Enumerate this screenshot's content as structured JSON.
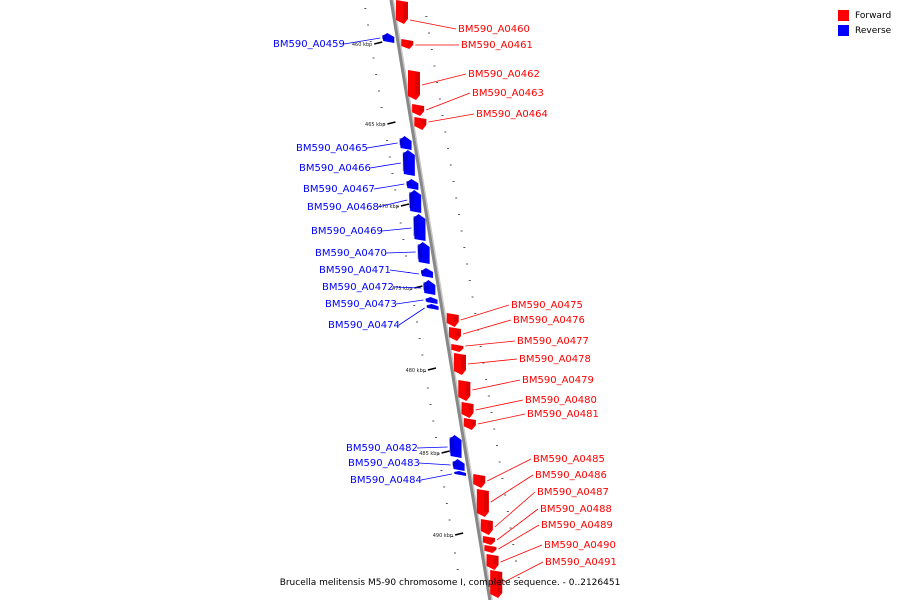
{
  "legend": {
    "forward": "Forward",
    "reverse": "Reverse"
  },
  "colors": {
    "forward": "#ff0000",
    "reverse": "#0000ff",
    "backbone": "#888888"
  },
  "caption": "Brucella melitensis M5-90 chromosome I, complete sequence. - 0..2126451",
  "ruler": [
    "460 kbp",
    "465 kbp",
    "470 kbp",
    "475 kbp",
    "480 kbp",
    "485 kbp",
    "490 kbp"
  ],
  "genes": [
    {
      "name": "BM590_A0459",
      "strand": "reverse"
    },
    {
      "name": "BM590_A0460",
      "strand": "forward"
    },
    {
      "name": "BM590_A0461",
      "strand": "forward"
    },
    {
      "name": "BM590_A0462",
      "strand": "forward"
    },
    {
      "name": "BM590_A0463",
      "strand": "forward"
    },
    {
      "name": "BM590_A0464",
      "strand": "forward"
    },
    {
      "name": "BM590_A0465",
      "strand": "reverse"
    },
    {
      "name": "BM590_A0466",
      "strand": "reverse"
    },
    {
      "name": "BM590_A0467",
      "strand": "reverse"
    },
    {
      "name": "BM590_A0468",
      "strand": "reverse"
    },
    {
      "name": "BM590_A0469",
      "strand": "reverse"
    },
    {
      "name": "BM590_A0470",
      "strand": "reverse"
    },
    {
      "name": "BM590_A0471",
      "strand": "reverse"
    },
    {
      "name": "BM590_A0472",
      "strand": "reverse"
    },
    {
      "name": "BM590_A0473",
      "strand": "reverse"
    },
    {
      "name": "BM590_A0474",
      "strand": "reverse"
    },
    {
      "name": "BM590_A0475",
      "strand": "forward"
    },
    {
      "name": "BM590_A0476",
      "strand": "forward"
    },
    {
      "name": "BM590_A0477",
      "strand": "forward"
    },
    {
      "name": "BM590_A0478",
      "strand": "forward"
    },
    {
      "name": "BM590_A0479",
      "strand": "forward"
    },
    {
      "name": "BM590_A0480",
      "strand": "forward"
    },
    {
      "name": "BM590_A0481",
      "strand": "forward"
    },
    {
      "name": "BM590_A0482",
      "strand": "reverse"
    },
    {
      "name": "BM590_A0483",
      "strand": "reverse"
    },
    {
      "name": "BM590_A0484",
      "strand": "reverse"
    },
    {
      "name": "BM590_A0485",
      "strand": "forward"
    },
    {
      "name": "BM590_A0486",
      "strand": "forward"
    },
    {
      "name": "BM590_A0487",
      "strand": "forward"
    },
    {
      "name": "BM590_A0488",
      "strand": "forward"
    },
    {
      "name": "BM590_A0489",
      "strand": "forward"
    },
    {
      "name": "BM590_A0490",
      "strand": "forward"
    },
    {
      "name": "BM590_A0491",
      "strand": "forward"
    }
  ]
}
